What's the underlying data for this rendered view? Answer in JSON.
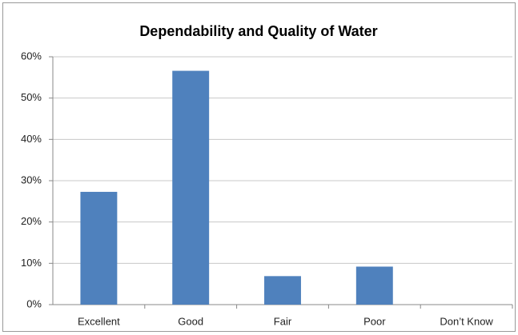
{
  "chart_data": {
    "type": "bar",
    "title": "Dependability and Quality of Water",
    "categories": [
      "Excellent",
      "Good",
      "Fair",
      "Poor",
      "Don’t Know"
    ],
    "values": [
      27.3,
      56.6,
      6.9,
      9.2,
      0
    ],
    "color": "#4f81bd",
    "ylim": [
      0,
      60
    ],
    "yticks": [
      {
        "value": 0,
        "label": "0%"
      },
      {
        "value": 10,
        "label": "10%"
      },
      {
        "value": 20,
        "label": "20%"
      },
      {
        "value": 30,
        "label": "30%"
      },
      {
        "value": 40,
        "label": "40%"
      },
      {
        "value": 50,
        "label": "50%"
      },
      {
        "value": 60,
        "label": "60%"
      }
    ],
    "grid": true
  }
}
